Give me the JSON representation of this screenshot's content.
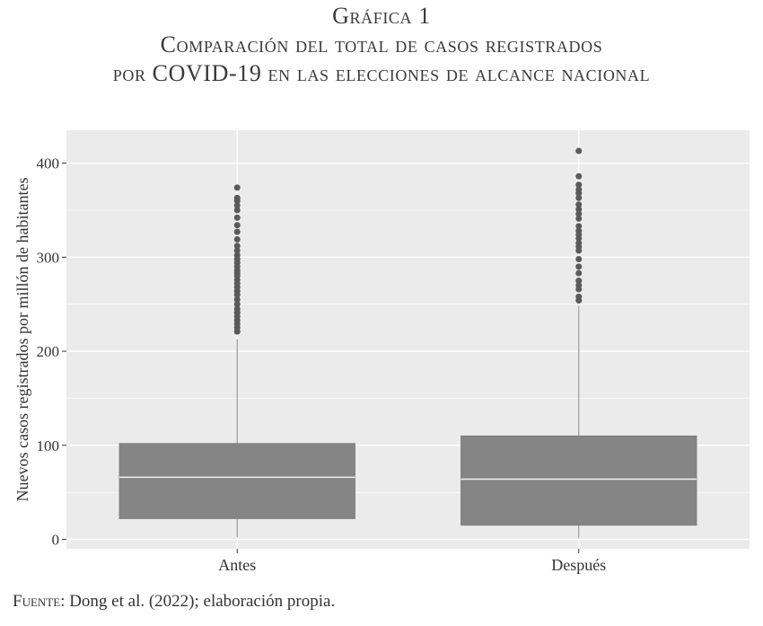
{
  "title": {
    "line1": "Gráfica 1",
    "line2": "Comparación del total de casos registrados",
    "line3": "por COVID-19 en las elecciones de alcance nacional"
  },
  "source": {
    "label": "Fuente:",
    "text": "Dong et al. (2022); elaboración propia."
  },
  "colors": {
    "panel": "#ebebeb",
    "grid": "#ffffff",
    "box": "#858585",
    "median": "#f2f2f2",
    "outlier": "#5a5a5a",
    "whisker": "#9a9a9a",
    "text": "#333333"
  },
  "chart_data": {
    "type": "boxplot",
    "title": "",
    "xlabel": "",
    "ylabel": "Nuevos casos registrados por millón de habitantes",
    "ylim": [
      -10,
      435
    ],
    "yticks": [
      0,
      100,
      200,
      300,
      400
    ],
    "grid": true,
    "categories": [
      "Antes",
      "Después"
    ],
    "boxes": [
      {
        "category": "Antes",
        "whisker_low": 2,
        "q1": 22,
        "median": 66,
        "q3": 102,
        "whisker_high": 213,
        "outliers": [
          221,
          225,
          229,
          233,
          237,
          241,
          245,
          250,
          255,
          260,
          264,
          268,
          272,
          276,
          280,
          283,
          286,
          290,
          294,
          298,
          302,
          307,
          312,
          319,
          327,
          334,
          342,
          350,
          355,
          360,
          363,
          374
        ]
      },
      {
        "category": "Después",
        "whisker_low": 1,
        "q1": 15,
        "median": 64,
        "q3": 110,
        "whisker_high": 248,
        "outliers": [
          254,
          258,
          266,
          270,
          275,
          283,
          290,
          298,
          307,
          311,
          315,
          320,
          324,
          328,
          333,
          341,
          346,
          351,
          356,
          363,
          368,
          372,
          377,
          386,
          413
        ]
      }
    ]
  }
}
